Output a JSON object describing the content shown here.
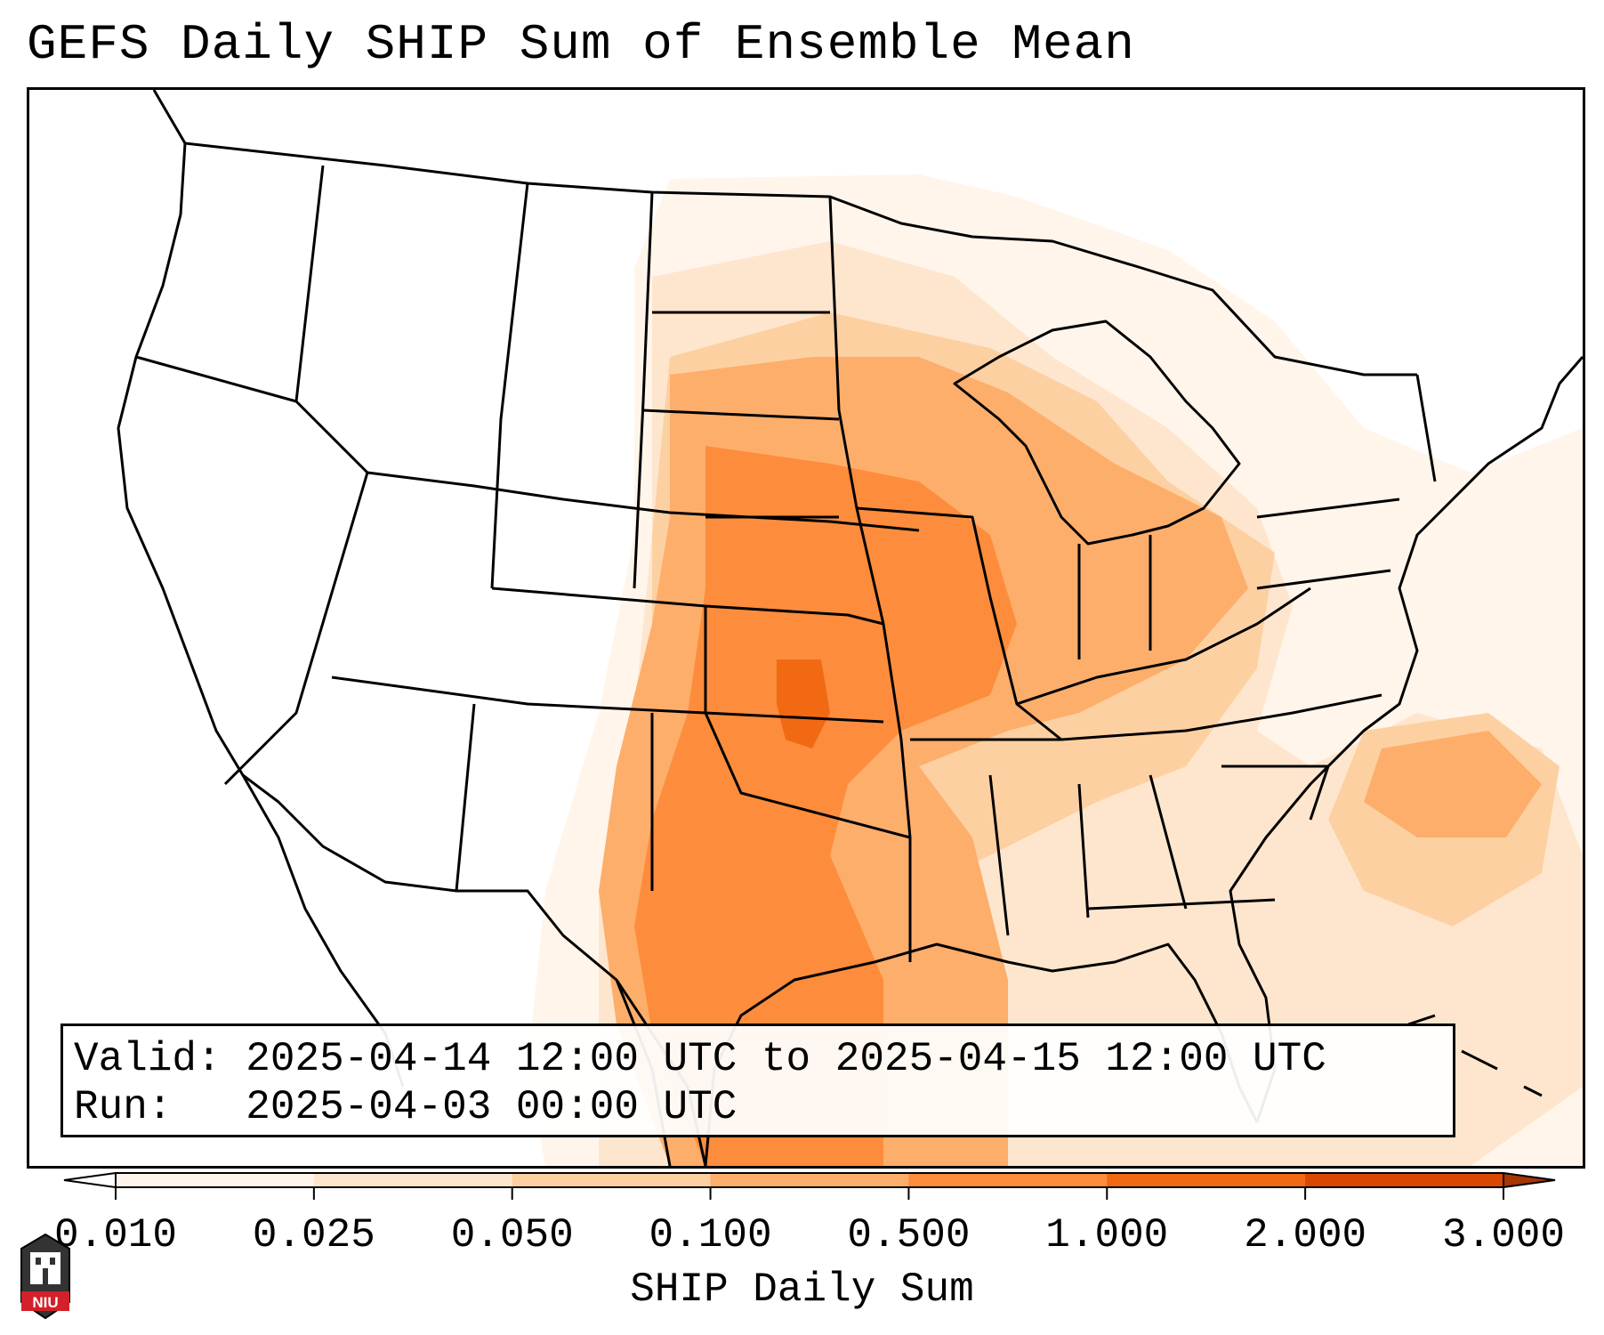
{
  "title": "GEFS Daily SHIP Sum of Ensemble Mean",
  "info": {
    "valid_label": "Valid:",
    "valid_value": "2025-04-14 12:00 UTC to 2025-04-15 12:00 UTC",
    "run_label": "Run:",
    "run_value": "2025-04-03 00:00 UTC"
  },
  "colorbar": {
    "label": "SHIP Daily Sum",
    "ticks": [
      "0.010",
      "0.025",
      "0.050",
      "0.100",
      "0.500",
      "1.000",
      "2.000",
      "3.000"
    ],
    "colors": [
      "#fff5eb",
      "#fee6ce",
      "#fdd0a2",
      "#fdae6b",
      "#fd8d3c",
      "#f16913",
      "#d94801"
    ],
    "over_color": "#a63603",
    "under_color": "#ffffff"
  },
  "logo": {
    "text": "NIU"
  },
  "palette": {
    "border": "#000000",
    "background": "#ffffff"
  }
}
